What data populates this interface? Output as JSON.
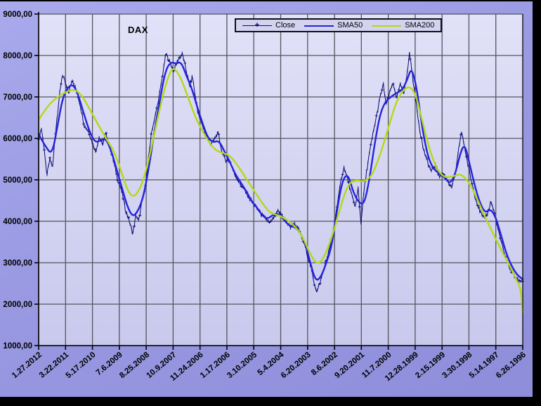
{
  "window": {
    "background": "#000000"
  },
  "colors": {
    "outer_background": "#9a9ae3",
    "plot_background_top": "#e1e1f8",
    "plot_background_bottom": "#c9c9ed",
    "gridline": "#54545e",
    "axis": "#000000",
    "text": "#000000",
    "legend_background": "#d3d3f0",
    "close": "#0a0a70",
    "sma50": "#2424dd",
    "sma200": "#b2d916"
  },
  "chart_data": {
    "type": "line",
    "title": "DAX",
    "legend": {
      "position": "top",
      "items": [
        {
          "label": "Close",
          "marker_glyph": "+"
        },
        {
          "label": "SMA50",
          "marker_glyph": ""
        },
        {
          "label": "SMA200",
          "marker_glyph": ""
        }
      ]
    },
    "x_axis": {
      "note": "time axis reversed: newest date at left, oldest at right",
      "labels": [
        "1.27.2012",
        "3.22.2011",
        "5.17.2010",
        "7.6.2009",
        "8.25.2008",
        "10.9.2007",
        "11.24.2006",
        "1.17.2006",
        "3.10.2005",
        "5.4.2004",
        "6.20.2003",
        "8.6.2002",
        "9.20.2001",
        "11.7.2000",
        "12.28.1999",
        "2.15.1999",
        "3.30.1998",
        "5.14.1997",
        "6.26.1996"
      ]
    },
    "y_axis": {
      "min": 1000,
      "max": 9000,
      "step": 1000,
      "tick_labels": [
        "9000,00",
        "8000,00",
        "7000,00",
        "6000,00",
        "5000,00",
        "4000,00",
        "3000,00",
        "2000,00",
        "1000,00"
      ]
    },
    "series": [
      {
        "name": "Close",
        "style": "thin-with-plus-markers",
        "noise_amplitude": 52,
        "points": [
          [
            0.0,
            6000
          ],
          [
            0.1,
            6250
          ],
          [
            0.2,
            5800
          ],
          [
            0.3,
            5100
          ],
          [
            0.42,
            5500
          ],
          [
            0.52,
            5300
          ],
          [
            0.62,
            6100
          ],
          [
            0.75,
            6900
          ],
          [
            0.88,
            7550
          ],
          [
            1.0,
            7300
          ],
          [
            1.12,
            7100
          ],
          [
            1.25,
            7430
          ],
          [
            1.4,
            7150
          ],
          [
            1.55,
            6800
          ],
          [
            1.7,
            6300
          ],
          [
            1.85,
            6180
          ],
          [
            2.0,
            5900
          ],
          [
            2.12,
            5670
          ],
          [
            2.25,
            6020
          ],
          [
            2.38,
            5850
          ],
          [
            2.5,
            6120
          ],
          [
            2.65,
            5800
          ],
          [
            2.8,
            5400
          ],
          [
            2.95,
            4980
          ],
          [
            3.1,
            4700
          ],
          [
            3.22,
            4300
          ],
          [
            3.35,
            4050
          ],
          [
            3.5,
            3700
          ],
          [
            3.62,
            4150
          ],
          [
            3.72,
            4000
          ],
          [
            3.85,
            4500
          ],
          [
            3.95,
            4750
          ],
          [
            4.08,
            5500
          ],
          [
            4.2,
            6150
          ],
          [
            4.32,
            6500
          ],
          [
            4.45,
            6900
          ],
          [
            4.55,
            7300
          ],
          [
            4.65,
            7700
          ],
          [
            4.73,
            8050
          ],
          [
            4.9,
            7800
          ],
          [
            5.02,
            7620
          ],
          [
            5.18,
            7900
          ],
          [
            5.35,
            8030
          ],
          [
            5.5,
            7600
          ],
          [
            5.62,
            7250
          ],
          [
            5.72,
            7500
          ],
          [
            5.85,
            6900
          ],
          [
            5.95,
            6550
          ],
          [
            6.1,
            6300
          ],
          [
            6.25,
            6050
          ],
          [
            6.4,
            5850
          ],
          [
            6.55,
            6000
          ],
          [
            6.68,
            6140
          ],
          [
            6.8,
            5700
          ],
          [
            6.95,
            5480
          ],
          [
            7.1,
            5450
          ],
          [
            7.25,
            5200
          ],
          [
            7.4,
            5000
          ],
          [
            7.55,
            4850
          ],
          [
            7.7,
            4700
          ],
          [
            7.85,
            4550
          ],
          [
            8.0,
            4400
          ],
          [
            8.15,
            4300
          ],
          [
            8.3,
            4150
          ],
          [
            8.45,
            4050
          ],
          [
            8.6,
            3950
          ],
          [
            8.75,
            4100
          ],
          [
            8.9,
            4250
          ],
          [
            9.05,
            4150
          ],
          [
            9.2,
            4000
          ],
          [
            9.35,
            3850
          ],
          [
            9.5,
            3950
          ],
          [
            9.65,
            3800
          ],
          [
            9.8,
            3600
          ],
          [
            9.95,
            3300
          ],
          [
            10.1,
            2950
          ],
          [
            10.25,
            2500
          ],
          [
            10.35,
            2300
          ],
          [
            10.5,
            2600
          ],
          [
            10.65,
            2950
          ],
          [
            10.8,
            3300
          ],
          [
            10.95,
            3750
          ],
          [
            11.1,
            4400
          ],
          [
            11.25,
            5000
          ],
          [
            11.35,
            5300
          ],
          [
            11.5,
            5000
          ],
          [
            11.65,
            4600
          ],
          [
            11.78,
            4350
          ],
          [
            11.88,
            4800
          ],
          [
            11.98,
            3950
          ],
          [
            12.1,
            4750
          ],
          [
            12.25,
            5450
          ],
          [
            12.4,
            6000
          ],
          [
            12.55,
            6500
          ],
          [
            12.7,
            7000
          ],
          [
            12.82,
            7300
          ],
          [
            12.92,
            6800
          ],
          [
            13.05,
            7100
          ],
          [
            13.18,
            7350
          ],
          [
            13.3,
            6950
          ],
          [
            13.45,
            7300
          ],
          [
            13.58,
            7100
          ],
          [
            13.7,
            7550
          ],
          [
            13.79,
            8080
          ],
          [
            13.9,
            7500
          ],
          [
            14.02,
            6950
          ],
          [
            14.15,
            6300
          ],
          [
            14.3,
            5750
          ],
          [
            14.45,
            5450
          ],
          [
            14.6,
            5200
          ],
          [
            14.75,
            5350
          ],
          [
            14.9,
            5100
          ],
          [
            15.05,
            5150
          ],
          [
            15.2,
            5000
          ],
          [
            15.35,
            4800
          ],
          [
            15.5,
            5150
          ],
          [
            15.62,
            5750
          ],
          [
            15.72,
            6170
          ],
          [
            15.82,
            5850
          ],
          [
            15.95,
            5400
          ],
          [
            16.1,
            4950
          ],
          [
            16.25,
            4550
          ],
          [
            16.4,
            4250
          ],
          [
            16.55,
            4050
          ],
          [
            16.7,
            4200
          ],
          [
            16.82,
            4480
          ],
          [
            16.95,
            4200
          ],
          [
            17.1,
            3750
          ],
          [
            17.3,
            3250
          ],
          [
            17.5,
            2900
          ],
          [
            17.7,
            2650
          ],
          [
            17.85,
            2570
          ],
          [
            18.0,
            2560
          ]
        ]
      },
      {
        "name": "SMA50",
        "style": "smooth",
        "points": [
          [
            0.0,
            6100
          ],
          [
            0.25,
            5800
          ],
          [
            0.5,
            5600
          ],
          [
            0.7,
            6300
          ],
          [
            0.9,
            7000
          ],
          [
            1.1,
            7250
          ],
          [
            1.3,
            7300
          ],
          [
            1.5,
            7000
          ],
          [
            1.7,
            6550
          ],
          [
            1.9,
            6150
          ],
          [
            2.1,
            5900
          ],
          [
            2.3,
            5950
          ],
          [
            2.5,
            6000
          ],
          [
            2.7,
            5700
          ],
          [
            2.9,
            5250
          ],
          [
            3.1,
            4800
          ],
          [
            3.3,
            4350
          ],
          [
            3.5,
            4100
          ],
          [
            3.7,
            4250
          ],
          [
            3.9,
            4600
          ],
          [
            4.1,
            5300
          ],
          [
            4.3,
            6150
          ],
          [
            4.5,
            6900
          ],
          [
            4.7,
            7600
          ],
          [
            4.9,
            7850
          ],
          [
            5.1,
            7800
          ],
          [
            5.3,
            7850
          ],
          [
            5.5,
            7500
          ],
          [
            5.7,
            7200
          ],
          [
            5.9,
            6750
          ],
          [
            6.1,
            6350
          ],
          [
            6.3,
            6000
          ],
          [
            6.5,
            5900
          ],
          [
            6.7,
            5950
          ],
          [
            6.9,
            5700
          ],
          [
            7.1,
            5450
          ],
          [
            7.3,
            5150
          ],
          [
            7.5,
            4950
          ],
          [
            7.7,
            4750
          ],
          [
            7.9,
            4500
          ],
          [
            8.1,
            4350
          ],
          [
            8.3,
            4150
          ],
          [
            8.5,
            4050
          ],
          [
            8.7,
            4150
          ],
          [
            8.9,
            4200
          ],
          [
            9.1,
            4050
          ],
          [
            9.3,
            3900
          ],
          [
            9.5,
            3870
          ],
          [
            9.7,
            3750
          ],
          [
            9.9,
            3500
          ],
          [
            10.1,
            3000
          ],
          [
            10.3,
            2550
          ],
          [
            10.5,
            2650
          ],
          [
            10.7,
            3000
          ],
          [
            10.9,
            3400
          ],
          [
            11.1,
            4300
          ],
          [
            11.3,
            5000
          ],
          [
            11.5,
            5150
          ],
          [
            11.7,
            4700
          ],
          [
            11.9,
            4450
          ],
          [
            12.1,
            4400
          ],
          [
            12.3,
            5000
          ],
          [
            12.5,
            5900
          ],
          [
            12.7,
            6600
          ],
          [
            12.9,
            6900
          ],
          [
            13.1,
            7000
          ],
          [
            13.3,
            7100
          ],
          [
            13.5,
            7150
          ],
          [
            13.7,
            7400
          ],
          [
            13.85,
            7700
          ],
          [
            14.0,
            7400
          ],
          [
            14.15,
            6800
          ],
          [
            14.3,
            6100
          ],
          [
            14.5,
            5500
          ],
          [
            14.7,
            5250
          ],
          [
            14.9,
            5150
          ],
          [
            15.1,
            5050
          ],
          [
            15.3,
            4900
          ],
          [
            15.5,
            5150
          ],
          [
            15.7,
            5700
          ],
          [
            15.85,
            5850
          ],
          [
            16.0,
            5450
          ],
          [
            16.2,
            4900
          ],
          [
            16.4,
            4450
          ],
          [
            16.6,
            4200
          ],
          [
            16.8,
            4300
          ],
          [
            17.0,
            4100
          ],
          [
            17.2,
            3650
          ],
          [
            17.4,
            3200
          ],
          [
            17.6,
            2900
          ],
          [
            17.8,
            2700
          ],
          [
            18.0,
            2600
          ]
        ]
      },
      {
        "name": "SMA200",
        "style": "smooth",
        "points": [
          [
            0.0,
            6450
          ],
          [
            0.3,
            6750
          ],
          [
            0.6,
            6950
          ],
          [
            0.9,
            7080
          ],
          [
            1.3,
            7200
          ],
          [
            1.6,
            7050
          ],
          [
            1.9,
            6700
          ],
          [
            2.2,
            6350
          ],
          [
            2.5,
            6000
          ],
          [
            2.8,
            5700
          ],
          [
            3.1,
            5150
          ],
          [
            3.3,
            4750
          ],
          [
            3.5,
            4580
          ],
          [
            3.7,
            4700
          ],
          [
            3.9,
            5000
          ],
          [
            4.1,
            5500
          ],
          [
            4.3,
            6100
          ],
          [
            4.5,
            6700
          ],
          [
            4.7,
            7250
          ],
          [
            4.9,
            7620
          ],
          [
            5.05,
            7700
          ],
          [
            5.3,
            7450
          ],
          [
            5.6,
            6900
          ],
          [
            5.9,
            6400
          ],
          [
            6.2,
            6050
          ],
          [
            6.5,
            5750
          ],
          [
            6.8,
            5650
          ],
          [
            7.1,
            5600
          ],
          [
            7.4,
            5350
          ],
          [
            7.7,
            5050
          ],
          [
            8.0,
            4750
          ],
          [
            8.3,
            4450
          ],
          [
            8.6,
            4200
          ],
          [
            8.9,
            4150
          ],
          [
            9.2,
            4050
          ],
          [
            9.5,
            3900
          ],
          [
            9.8,
            3650
          ],
          [
            10.1,
            3200
          ],
          [
            10.35,
            2950
          ],
          [
            10.6,
            3100
          ],
          [
            10.9,
            3600
          ],
          [
            11.2,
            4300
          ],
          [
            11.5,
            4900
          ],
          [
            11.8,
            5000
          ],
          [
            12.1,
            4950
          ],
          [
            12.4,
            5100
          ],
          [
            12.7,
            5600
          ],
          [
            13.0,
            6250
          ],
          [
            13.3,
            6900
          ],
          [
            13.6,
            7200
          ],
          [
            13.8,
            7250
          ],
          [
            14.0,
            7100
          ],
          [
            14.2,
            6600
          ],
          [
            14.5,
            5800
          ],
          [
            14.8,
            5250
          ],
          [
            15.1,
            5050
          ],
          [
            15.4,
            5080
          ],
          [
            15.7,
            5150
          ],
          [
            16.0,
            4950
          ],
          [
            16.3,
            4550
          ],
          [
            16.6,
            4100
          ],
          [
            16.9,
            3700
          ],
          [
            17.2,
            3300
          ],
          [
            17.5,
            2950
          ],
          [
            17.8,
            2550
          ],
          [
            17.93,
            2350
          ],
          [
            18.0,
            1800
          ]
        ]
      }
    ]
  }
}
